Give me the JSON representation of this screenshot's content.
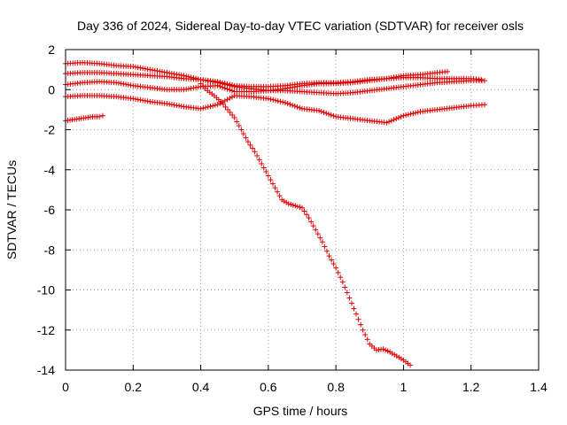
{
  "chart_data": {
    "type": "scatter",
    "title": "Day 336 of 2024, Sidereal Day-to-day VTEC variation (SDTVAR) for receiver osls",
    "xlabel": "GPS time / hours",
    "ylabel": "SDTVAR / TECUs",
    "xlim": [
      0,
      1.4
    ],
    "ylim": [
      -14,
      2
    ],
    "xticks": [
      0,
      0.2,
      0.4,
      0.6,
      0.8,
      1,
      1.2,
      1.4
    ],
    "yticks": [
      2,
      0,
      -2,
      -4,
      -6,
      -8,
      -10,
      -12,
      -14
    ],
    "xtick_labels": [
      "0",
      "0.2",
      "0.4",
      "0.6",
      "0.8",
      "1",
      "1.2",
      "1.4"
    ],
    "ytick_labels": [
      "2",
      "0",
      "-2",
      "-4",
      "-6",
      "-8",
      "-10",
      "-12",
      "-14"
    ],
    "grid": true,
    "marker": "+",
    "marker_color": "#dd0000",
    "series": [
      {
        "name": "series-1",
        "points": [
          [
            0.0,
            1.3
          ],
          [
            0.05,
            1.35
          ],
          [
            0.1,
            1.3
          ],
          [
            0.15,
            1.2
          ],
          [
            0.2,
            1.15
          ],
          [
            0.25,
            1.0
          ],
          [
            0.3,
            0.85
          ],
          [
            0.35,
            0.7
          ],
          [
            0.4,
            0.5
          ],
          [
            0.45,
            0.35
          ],
          [
            0.5,
            0.15
          ],
          [
            0.55,
            0.05
          ],
          [
            0.6,
            -0.05
          ],
          [
            0.65,
            0.05
          ],
          [
            0.7,
            0.2
          ],
          [
            0.75,
            0.3
          ],
          [
            0.8,
            0.3
          ],
          [
            0.85,
            0.35
          ],
          [
            0.9,
            0.45
          ],
          [
            0.95,
            0.55
          ],
          [
            1.0,
            0.7
          ],
          [
            1.05,
            0.75
          ],
          [
            1.1,
            0.85
          ],
          [
            1.13,
            0.9
          ]
        ]
      },
      {
        "name": "series-2",
        "points": [
          [
            0.0,
            0.8
          ],
          [
            0.05,
            0.85
          ],
          [
            0.1,
            0.85
          ],
          [
            0.15,
            0.8
          ],
          [
            0.2,
            0.75
          ],
          [
            0.25,
            0.7
          ],
          [
            0.3,
            0.65
          ],
          [
            0.35,
            0.55
          ],
          [
            0.4,
            0.5
          ],
          [
            0.45,
            0.4
          ],
          [
            0.5,
            0.2
          ],
          [
            0.55,
            0.15
          ],
          [
            0.6,
            0.15
          ],
          [
            0.65,
            0.2
          ],
          [
            0.7,
            0.3
          ],
          [
            0.75,
            0.35
          ],
          [
            0.8,
            0.35
          ],
          [
            0.85,
            0.4
          ],
          [
            0.9,
            0.5
          ],
          [
            0.95,
            0.55
          ],
          [
            1.0,
            0.6
          ],
          [
            1.05,
            0.6
          ],
          [
            1.1,
            0.55
          ],
          [
            1.15,
            0.55
          ],
          [
            1.2,
            0.55
          ],
          [
            1.23,
            0.5
          ]
        ]
      },
      {
        "name": "series-3",
        "points": [
          [
            0.0,
            0.25
          ],
          [
            0.05,
            0.35
          ],
          [
            0.1,
            0.4
          ],
          [
            0.15,
            0.35
          ],
          [
            0.2,
            0.2
          ],
          [
            0.25,
            0.1
          ],
          [
            0.3,
            0.0
          ],
          [
            0.35,
            0.0
          ],
          [
            0.4,
            0.15
          ],
          [
            0.45,
            0.2
          ],
          [
            0.5,
            -0.1
          ],
          [
            0.55,
            -0.1
          ],
          [
            0.6,
            -0.05
          ],
          [
            0.65,
            -0.05
          ],
          [
            0.7,
            -0.1
          ],
          [
            0.75,
            -0.15
          ],
          [
            0.8,
            -0.2
          ],
          [
            0.85,
            -0.15
          ],
          [
            0.9,
            -0.05
          ],
          [
            0.95,
            0.05
          ],
          [
            1.0,
            0.15
          ],
          [
            1.05,
            0.25
          ],
          [
            1.1,
            0.35
          ],
          [
            1.15,
            0.4
          ],
          [
            1.2,
            0.45
          ],
          [
            1.24,
            0.45
          ]
        ]
      },
      {
        "name": "series-4",
        "points": [
          [
            0.0,
            -0.35
          ],
          [
            0.05,
            -0.3
          ],
          [
            0.1,
            -0.3
          ],
          [
            0.15,
            -0.35
          ],
          [
            0.2,
            -0.45
          ],
          [
            0.25,
            -0.6
          ],
          [
            0.3,
            -0.7
          ],
          [
            0.35,
            -0.85
          ],
          [
            0.4,
            -0.95
          ],
          [
            0.45,
            -0.75
          ],
          [
            0.5,
            -0.3
          ],
          [
            0.55,
            -0.35
          ],
          [
            0.6,
            -0.45
          ],
          [
            0.65,
            -0.65
          ],
          [
            0.7,
            -0.95
          ],
          [
            0.75,
            -1.05
          ],
          [
            0.8,
            -1.35
          ],
          [
            0.85,
            -1.45
          ],
          [
            0.9,
            -1.55
          ],
          [
            0.95,
            -1.65
          ],
          [
            1.0,
            -1.3
          ],
          [
            1.05,
            -1.1
          ],
          [
            1.1,
            -1.0
          ],
          [
            1.15,
            -0.9
          ],
          [
            1.2,
            -0.8
          ],
          [
            1.24,
            -0.75
          ]
        ]
      },
      {
        "name": "series-5",
        "points": [
          [
            0.0,
            -1.55
          ],
          [
            0.02,
            -1.5
          ],
          [
            0.04,
            -1.45
          ],
          [
            0.06,
            -1.4
          ],
          [
            0.08,
            -1.35
          ],
          [
            0.1,
            -1.35
          ],
          [
            0.11,
            -1.3
          ]
        ]
      },
      {
        "name": "series-6",
        "points": [
          [
            0.4,
            0.3
          ],
          [
            0.42,
            -0.05
          ],
          [
            0.44,
            -0.3
          ],
          [
            0.46,
            -0.6
          ],
          [
            0.48,
            -1.0
          ],
          [
            0.5,
            -1.4
          ],
          [
            0.52,
            -2.0
          ],
          [
            0.54,
            -2.6
          ],
          [
            0.56,
            -3.1
          ],
          [
            0.58,
            -3.7
          ],
          [
            0.6,
            -4.3
          ],
          [
            0.62,
            -4.9
          ],
          [
            0.64,
            -5.5
          ],
          [
            0.66,
            -5.7
          ],
          [
            0.68,
            -5.8
          ],
          [
            0.7,
            -5.9
          ],
          [
            0.72,
            -6.4
          ],
          [
            0.74,
            -7.0
          ],
          [
            0.76,
            -7.6
          ],
          [
            0.78,
            -8.3
          ],
          [
            0.8,
            -8.9
          ],
          [
            0.82,
            -9.6
          ],
          [
            0.84,
            -10.4
          ],
          [
            0.86,
            -11.2
          ],
          [
            0.88,
            -12.0
          ],
          [
            0.9,
            -12.7
          ],
          [
            0.92,
            -13.0
          ],
          [
            0.94,
            -12.95
          ],
          [
            0.96,
            -13.1
          ],
          [
            0.98,
            -13.3
          ],
          [
            1.0,
            -13.5
          ],
          [
            1.02,
            -13.75
          ]
        ]
      }
    ]
  }
}
